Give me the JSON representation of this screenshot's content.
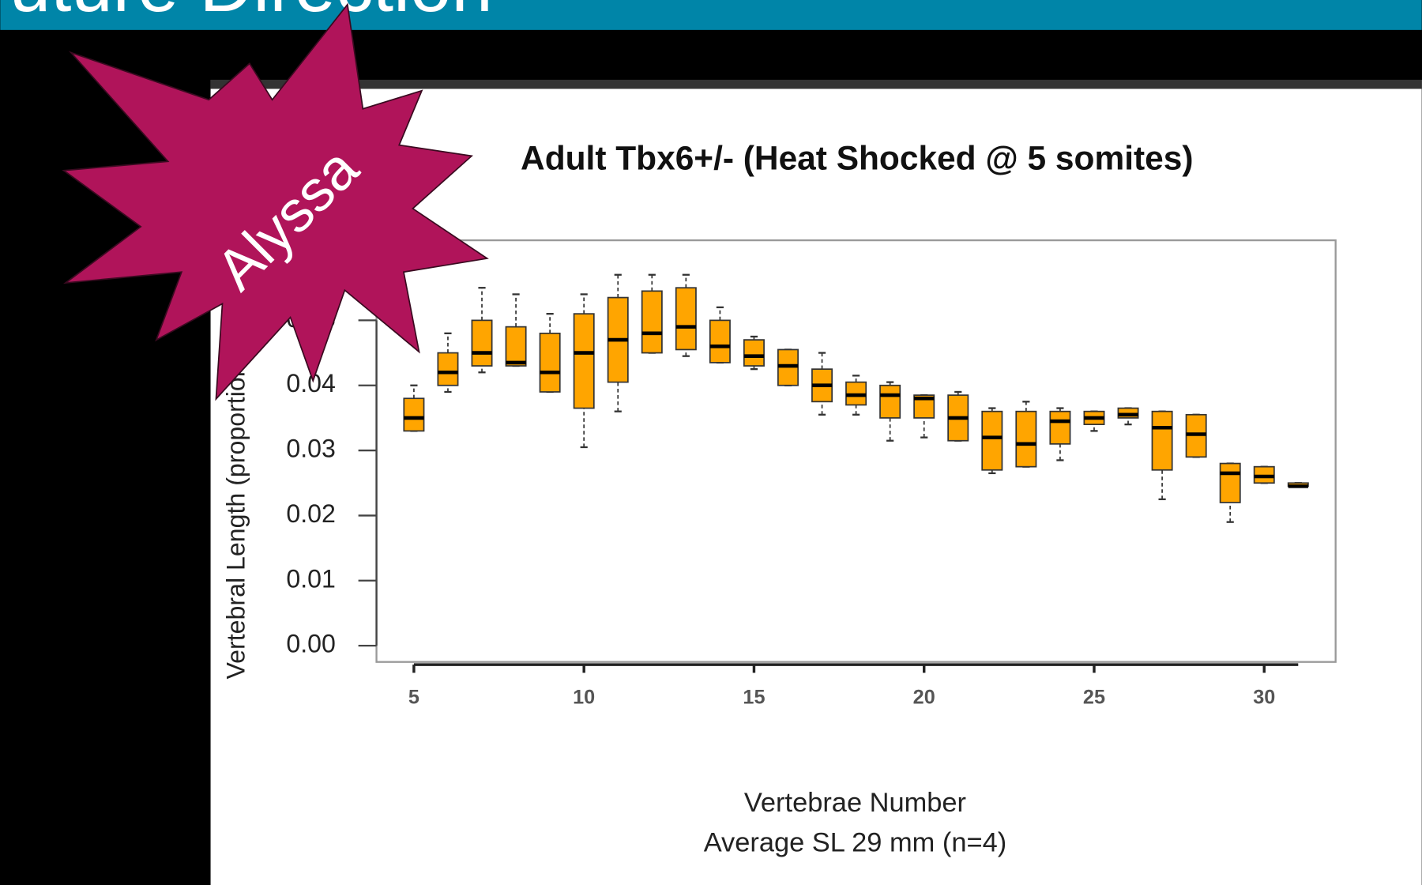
{
  "slide": {
    "header": "Future Direction",
    "badge": "Alyssa"
  },
  "chart_data": {
    "type": "box",
    "title": "Adult Tbx6+/- (Heat Shocked @ 5 somites)",
    "y_label": "Vertebral Length (proportion)",
    "x_label": "Vertebrae Number",
    "x_sublabel": "Average SL 29 mm (n=4)",
    "color": "#ffa500",
    "x": [
      5,
      6,
      7,
      8,
      9,
      10,
      11,
      12,
      13,
      14,
      15,
      16,
      17,
      18,
      19,
      20,
      21,
      22,
      23,
      24,
      25,
      26,
      27,
      28,
      29,
      30,
      31
    ],
    "min": [
      0.033,
      0.039,
      0.042,
      0.043,
      0.039,
      0.0305,
      0.036,
      0.045,
      0.0445,
      0.0435,
      0.0425,
      0.04,
      0.0355,
      0.0355,
      0.0315,
      0.032,
      0.0315,
      0.0265,
      0.0275,
      0.0285,
      0.033,
      0.034,
      0.0225,
      0.029,
      0.019,
      0.025,
      0.0245
    ],
    "q1": [
      0.033,
      0.04,
      0.043,
      0.043,
      0.039,
      0.0365,
      0.0405,
      0.045,
      0.0455,
      0.0435,
      0.043,
      0.04,
      0.0375,
      0.037,
      0.035,
      0.035,
      0.0315,
      0.027,
      0.0275,
      0.031,
      0.034,
      0.035,
      0.027,
      0.029,
      0.022,
      0.025,
      0.0245
    ],
    "median": [
      0.035,
      0.042,
      0.045,
      0.0435,
      0.042,
      0.045,
      0.047,
      0.048,
      0.049,
      0.046,
      0.0445,
      0.043,
      0.04,
      0.0385,
      0.0385,
      0.038,
      0.035,
      0.032,
      0.031,
      0.0345,
      0.035,
      0.0355,
      0.0335,
      0.0325,
      0.0265,
      0.026,
      0.0245
    ],
    "q3": [
      0.038,
      0.045,
      0.05,
      0.049,
      0.048,
      0.051,
      0.0535,
      0.0545,
      0.055,
      0.05,
      0.047,
      0.0455,
      0.0425,
      0.0405,
      0.04,
      0.0385,
      0.0385,
      0.036,
      0.036,
      0.036,
      0.036,
      0.0365,
      0.036,
      0.0355,
      0.028,
      0.0275,
      0.025
    ],
    "max": [
      0.04,
      0.048,
      0.055,
      0.054,
      0.051,
      0.054,
      0.057,
      0.057,
      0.057,
      0.052,
      0.0475,
      0.0455,
      0.045,
      0.0415,
      0.0405,
      0.0385,
      0.039,
      0.0365,
      0.0375,
      0.0365,
      0.036,
      0.0365,
      0.036,
      0.0355,
      0.028,
      0.0275,
      0.025
    ],
    "xlim": [
      3.9,
      32.1
    ],
    "xticks": [
      5,
      10,
      15,
      20,
      25,
      30
    ],
    "ylim": [
      -0.0025,
      0.0623
    ],
    "yticks": [
      {
        "value": 0,
        "label": "0.00"
      },
      {
        "value": 0.01,
        "label": "0.01"
      },
      {
        "value": 0.02,
        "label": "0.02"
      },
      {
        "value": 0.03,
        "label": "0.03"
      },
      {
        "value": 0.04,
        "label": "0.04"
      },
      {
        "value": 0.05,
        "label": "0.05"
      }
    ]
  }
}
